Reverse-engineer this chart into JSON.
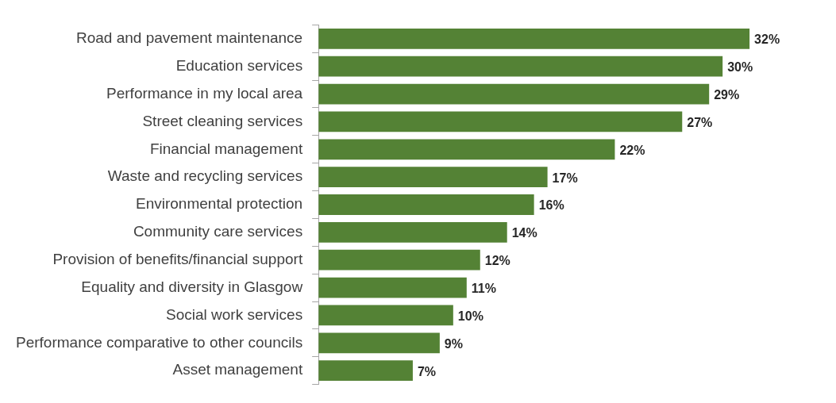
{
  "chart_data": {
    "type": "bar",
    "orientation": "horizontal",
    "categories": [
      "Road and pavement maintenance",
      "Education services",
      "Performance in my local area",
      "Street cleaning services",
      "Financial management",
      "Waste and recycling services",
      "Environmental protection",
      "Community care services",
      "Provision of benefits/financial support",
      "Equality and diversity in Glasgow",
      "Social work services",
      "Performance comparative to other councils",
      "Asset management"
    ],
    "values": [
      32,
      30,
      29,
      27,
      22,
      17,
      16,
      14,
      12,
      11,
      10,
      9,
      7
    ],
    "value_labels": [
      "32%",
      "30%",
      "29%",
      "27%",
      "22%",
      "17%",
      "16%",
      "14%",
      "12%",
      "11%",
      "10%",
      "9%",
      "7%"
    ],
    "color": "#548235",
    "tick_labels": "y",
    "legend": false
  }
}
